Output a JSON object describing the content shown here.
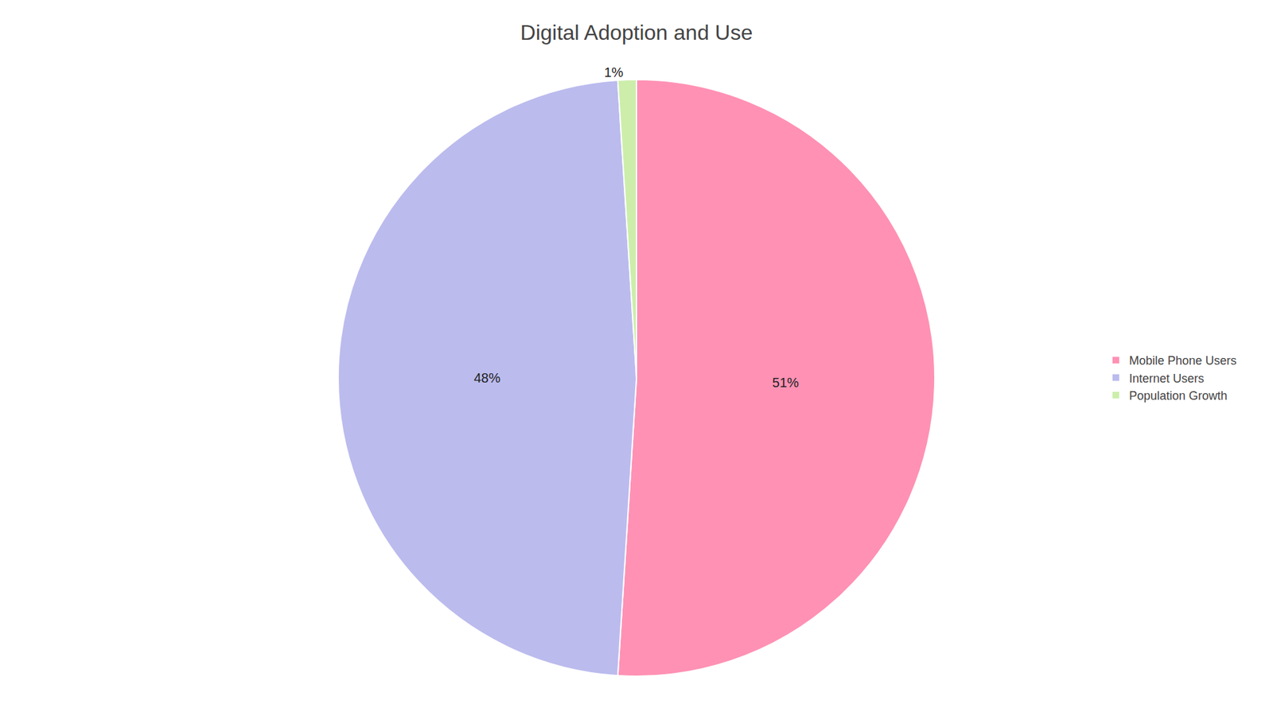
{
  "chart_data": {
    "type": "pie",
    "title": "Digital Adoption and Use",
    "categories": [
      "Mobile Phone Users",
      "Internet Users",
      "Population Growth"
    ],
    "values": [
      51,
      48,
      1
    ],
    "value_labels": [
      "51%",
      "48%",
      "1%"
    ],
    "colors": [
      "#FF91B4",
      "#BBBBEE",
      "#CCEEAA"
    ],
    "data_labels": true,
    "legend": "right"
  }
}
